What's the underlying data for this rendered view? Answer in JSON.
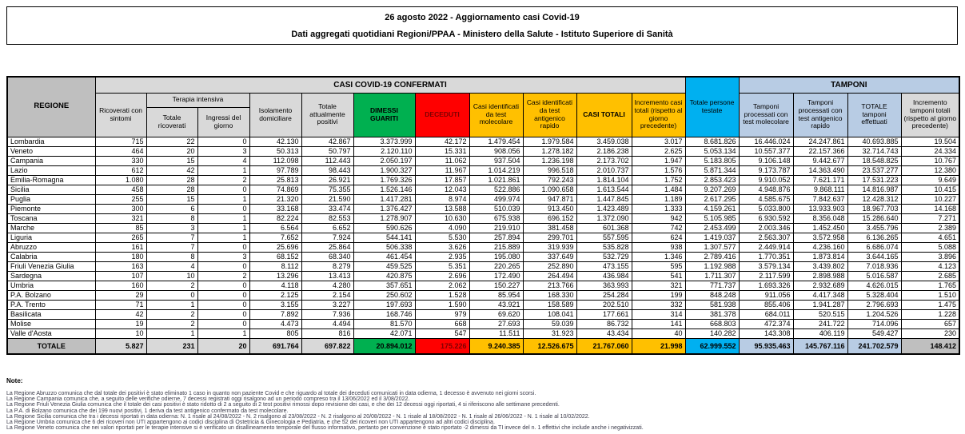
{
  "title": {
    "line1": "26 agosto 2022 - Aggiornamento casi Covid-19",
    "line2": "Dati aggregati quotidiani Regioni/PPAA - Ministero della Salute - Istituto Superiore di Sanità"
  },
  "table": {
    "headers": {
      "regione": "REGIONE",
      "group_confermati": "CASI COVID-19 CONFERMATI",
      "group_terapia": "Terapia intensiva",
      "group_tamponi": "TAMPONI",
      "ricoverati_sintomi": "Ricoverati con sintomi",
      "terapia_totale": "Totale ricoverati",
      "terapia_ingressi": "Ingressi del giorno",
      "isolamento": "Isolamento domiciliare",
      "attualmente_positivi": "Totale attualmente positivi",
      "dimessi_guariti": "DIMESSI GUARITI",
      "deceduti": "DECEDUTI",
      "casi_molecolare": "Casi identificati da test molecolare",
      "casi_antigenico": "Casi identificati da test antigenico rapido",
      "casi_totali": "CASI TOTALI",
      "incremento_casi": "Incremento casi totali (rispetto al giorno precedente)",
      "persone_testate": "Totale persone testate",
      "tamponi_molecolare": "Tamponi processati con test molecolare",
      "tamponi_antigenico": "Tamponi processati con test antigenico rapido",
      "tamponi_totale": "TOTALE tamponi effettuati",
      "incremento_tamponi": "Incremento tamponi totali (rispetto al giorno precedente)"
    },
    "column_keys": [
      "ricoverati-sintomi",
      "terapia-totale",
      "terapia-ingressi",
      "isolamento",
      "attualmente-positivi",
      "dimessi-guariti",
      "deceduti",
      "casi-molecolare",
      "casi-antigenico",
      "casi-totali",
      "incremento-casi",
      "persone-testate",
      "tamponi-molecolare",
      "tamponi-antigenico",
      "tamponi-totale",
      "incremento-tamponi"
    ],
    "rows": [
      {
        "region": "Lombardia",
        "values": [
          "715",
          "22",
          "0",
          "42.130",
          "42.867",
          "3.373.999",
          "42.172",
          "1.479.454",
          "1.979.584",
          "3.459.038",
          "3.017",
          "8.681.826",
          "16.446.024",
          "24.247.861",
          "40.693.885",
          "19.504"
        ]
      },
      {
        "region": "Veneto",
        "values": [
          "464",
          "20",
          "3",
          "50.313",
          "50.797",
          "2.120.110",
          "15.331",
          "908.056",
          "1.278.182",
          "2.186.238",
          "2.625",
          "5.053.134",
          "10.557.377",
          "22.157.366",
          "32.714.743",
          "24.334"
        ]
      },
      {
        "region": "Campania",
        "values": [
          "330",
          "15",
          "4",
          "112.098",
          "112.443",
          "2.050.197",
          "11.062",
          "937.504",
          "1.236.198",
          "2.173.702",
          "1.947",
          "5.183.805",
          "9.106.148",
          "9.442.677",
          "18.548.825",
          "10.767"
        ]
      },
      {
        "region": "Lazio",
        "values": [
          "612",
          "42",
          "1",
          "97.789",
          "98.443",
          "1.900.327",
          "11.967",
          "1.014.219",
          "996.518",
          "2.010.737",
          "1.576",
          "5.871.344",
          "9.173.787",
          "14.363.490",
          "23.537.277",
          "12.380"
        ]
      },
      {
        "region": "Emilia-Romagna",
        "values": [
          "1.080",
          "28",
          "2",
          "25.813",
          "26.921",
          "1.769.326",
          "17.857",
          "1.021.861",
          "792.243",
          "1.814.104",
          "1.752",
          "2.853.423",
          "9.910.052",
          "7.621.171",
          "17.531.223",
          "9.649"
        ]
      },
      {
        "region": "Sicilia",
        "values": [
          "458",
          "28",
          "0",
          "74.869",
          "75.355",
          "1.526.146",
          "12.043",
          "522.886",
          "1.090.658",
          "1.613.544",
          "1.484",
          "9.207.269",
          "4.948.876",
          "9.868.111",
          "14.816.987",
          "10.415"
        ]
      },
      {
        "region": "Puglia",
        "values": [
          "255",
          "15",
          "1",
          "21.320",
          "21.590",
          "1.417.281",
          "8.974",
          "499.974",
          "947.871",
          "1.447.845",
          "1.189",
          "2.617.295",
          "4.585.675",
          "7.842.637",
          "12.428.312",
          "10.227"
        ]
      },
      {
        "region": "Piemonte",
        "values": [
          "300",
          "6",
          "0",
          "33.168",
          "33.474",
          "1.376.427",
          "13.588",
          "510.039",
          "913.450",
          "1.423.489",
          "1.333",
          "4.159.261",
          "5.033.800",
          "13.933.903",
          "18.967.703",
          "14.168"
        ]
      },
      {
        "region": "Toscana",
        "values": [
          "321",
          "8",
          "1",
          "82.224",
          "82.553",
          "1.278.907",
          "10.630",
          "675.938",
          "696.152",
          "1.372.090",
          "942",
          "5.105.985",
          "6.930.592",
          "8.356.048",
          "15.286.640",
          "7.271"
        ]
      },
      {
        "region": "Marche",
        "values": [
          "85",
          "3",
          "1",
          "6.564",
          "6.652",
          "590.626",
          "4.090",
          "219.910",
          "381.458",
          "601.368",
          "742",
          "2.453.499",
          "2.003.346",
          "1.452.450",
          "3.455.796",
          "2.389"
        ]
      },
      {
        "region": "Liguria",
        "values": [
          "265",
          "7",
          "1",
          "7.652",
          "7.924",
          "544.141",
          "5.530",
          "257.894",
          "299.701",
          "557.595",
          "624",
          "1.419.037",
          "2.563.307",
          "3.572.958",
          "6.136.265",
          "4.651"
        ]
      },
      {
        "region": "Abruzzo",
        "values": [
          "161",
          "7",
          "0",
          "25.696",
          "25.864",
          "506.338",
          "3.626",
          "215.889",
          "319.939",
          "535.828",
          "938",
          "1.307.577",
          "2.449.914",
          "4.236.160",
          "6.686.074",
          "5.088"
        ]
      },
      {
        "region": "Calabria",
        "values": [
          "180",
          "8",
          "3",
          "68.152",
          "68.340",
          "461.454",
          "2.935",
          "195.080",
          "337.649",
          "532.729",
          "1.346",
          "2.789.416",
          "1.770.351",
          "1.873.814",
          "3.644.165",
          "3.896"
        ]
      },
      {
        "region": "Friuli Venezia Giulia",
        "values": [
          "163",
          "4",
          "0",
          "8.112",
          "8.279",
          "459.525",
          "5.351",
          "220.265",
          "252.890",
          "473.155",
          "595",
          "1.192.988",
          "3.579.134",
          "3.439.802",
          "7.018.936",
          "4.123"
        ]
      },
      {
        "region": "Sardegna",
        "values": [
          "107",
          "10",
          "2",
          "13.296",
          "13.413",
          "420.875",
          "2.696",
          "172.490",
          "264.494",
          "436.984",
          "541",
          "1.711.307",
          "2.117.599",
          "2.898.988",
          "5.016.587",
          "2.685"
        ]
      },
      {
        "region": "Umbria",
        "values": [
          "160",
          "2",
          "0",
          "4.118",
          "4.280",
          "357.651",
          "2.062",
          "150.227",
          "213.766",
          "363.993",
          "321",
          "771.737",
          "1.693.326",
          "2.932.689",
          "4.626.015",
          "1.765"
        ]
      },
      {
        "region": "P.A. Bolzano",
        "values": [
          "29",
          "0",
          "0",
          "2.125",
          "2.154",
          "250.602",
          "1.528",
          "85.954",
          "168.330",
          "254.284",
          "199",
          "848.248",
          "911.056",
          "4.417.348",
          "5.328.404",
          "1.510"
        ]
      },
      {
        "region": "P.A. Trento",
        "values": [
          "71",
          "1",
          "0",
          "3.155",
          "3.227",
          "197.693",
          "1.590",
          "43.921",
          "158.589",
          "202.510",
          "332",
          "581.938",
          "855.406",
          "1.941.287",
          "2.796.693",
          "1.475"
        ]
      },
      {
        "region": "Basilicata",
        "values": [
          "42",
          "2",
          "0",
          "7.892",
          "7.936",
          "168.746",
          "979",
          "69.620",
          "108.041",
          "177.661",
          "314",
          "381.378",
          "684.011",
          "520.515",
          "1.204.526",
          "1.228"
        ]
      },
      {
        "region": "Molise",
        "values": [
          "19",
          "2",
          "0",
          "4.473",
          "4.494",
          "81.570",
          "668",
          "27.693",
          "59.039",
          "86.732",
          "141",
          "668.803",
          "472.374",
          "241.722",
          "714.096",
          "657"
        ]
      },
      {
        "region": "Valle d'Aosta",
        "values": [
          "10",
          "1",
          "1",
          "805",
          "816",
          "42.071",
          "547",
          "11.511",
          "31.923",
          "43.434",
          "40",
          "140.282",
          "143.308",
          "406.119",
          "549.427",
          "230"
        ]
      }
    ],
    "total": {
      "region": "TOTALE",
      "values": [
        "5.827",
        "231",
        "20",
        "691.764",
        "697.822",
        "20.894.012",
        "175.226",
        "9.240.385",
        "12.526.675",
        "21.767.060",
        "21.998",
        "62.999.552",
        "95.935.463",
        "145.767.116",
        "241.702.579",
        "148.412"
      ]
    }
  },
  "notes": {
    "label": "Note:",
    "lines": [
      "La Regione Abruzzo  comunica che dal totale dei positivi è stato eliminato 1 caso in quanto non paziente Covid e che riguardo al totale dei deceduti comunicati in data odierna, 1 decesso è avvenuto nei giorni scorsi.",
      "La Regione Campania comunica che, a seguito delle verifiche odierne, 7 decessi registrati oggi risalgono ad un periodo compreso tra il 13/06/2022 ed il 3/08/2022.",
      "La Regione Friuli Venezia Giulia comunica che il totale dei casi positivi è stato ridotto di 2 a seguito di 2 test positivi rimossi dopo revisione dei casi, e che dei 12 decessi oggi riportati, 4 si riferiscono alle settimane precedenti.",
      "La P.A. di Bolzano comunica che dei 199 nuovi positivi, 1 deriva da test antigenico confermato da test molecolare.",
      "La Regione Sicilia comunica che tra i decessi riportati in data odierna: N. 1 risale al 24/08/2022 - N. 2 risalgono al 23/08/2022 - N. 2 risalgono al 20/08/2022 - N. 1 risale al 18/08/2022 - N. 1 risale al 26/06/2022 - N. 1 risale al 10/02/2022.",
      "La Regione Umbria comunica che 6 dei ricoveri non UTI appartengono ai codici disciplina di Ostetricia & Ginecologia e Pediatria, e che 52 dei ricoveri non UTI appartengono ad altri codici disciplina.",
      "La Regione Veneto comunica che nei valori riportati per le terapie intensive si è verificato un disallineamento temporale del flusso informativo, pertanto per convenzione è stato riportato -2 dimessi da TI invece del n. 1 effettivi che include anche i negativizzati."
    ]
  },
  "colors": {
    "green": "#00B050",
    "red": "#FF0000",
    "amber": "#FFC000",
    "cyan": "#00B0F0",
    "periwinkle": "#B8CCE4",
    "gray_dark": "#BFBFBF",
    "gray_light": "#D9D9D9"
  }
}
